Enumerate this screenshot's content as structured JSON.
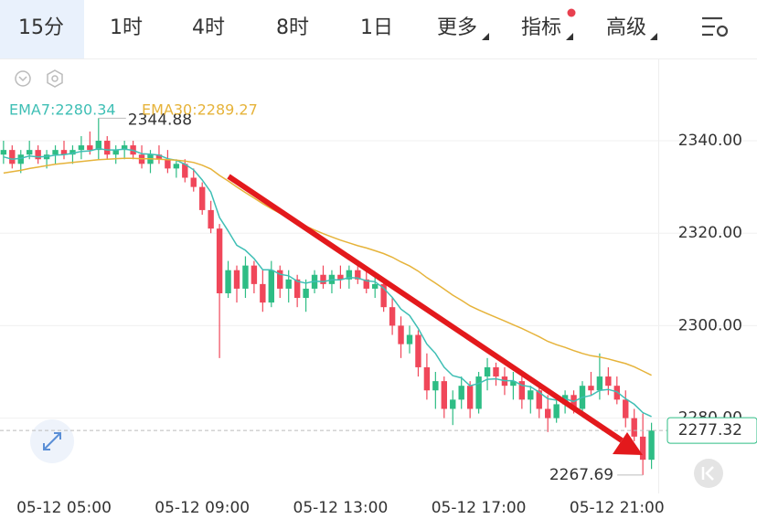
{
  "toolbar": {
    "tabs": [
      "15分",
      "1时",
      "4时",
      "8时",
      "1日",
      "更多",
      "指标",
      "高级"
    ]
  },
  "chart_data": {
    "type": "candlestick",
    "categories": [
      null,
      null,
      null,
      null,
      null,
      null,
      null,
      "05-12 05:00",
      null,
      null,
      null,
      null,
      null,
      null,
      null,
      null,
      null,
      null,
      null,
      null,
      null,
      null,
      null,
      "05-12 09:00",
      null,
      null,
      null,
      null,
      null,
      null,
      null,
      null,
      null,
      null,
      null,
      null,
      null,
      null,
      null,
      "05-12 13:00",
      null,
      null,
      null,
      null,
      null,
      null,
      null,
      null,
      null,
      null,
      null,
      null,
      null,
      null,
      null,
      "05-12 17:00",
      null,
      null,
      null,
      null,
      null,
      null,
      null,
      null,
      null,
      null,
      null,
      null,
      null,
      null,
      null,
      "05-12 21:00",
      null,
      null,
      null,
      null
    ],
    "open": [
      2337,
      2338,
      2335,
      2337,
      2338,
      2336,
      2337,
      2338,
      2337,
      2338,
      2339,
      2338,
      2340,
      2337,
      2338,
      2339,
      2337,
      2335,
      2337,
      2336,
      2334,
      2335,
      2332,
      2330,
      2325,
      2321,
      2307,
      2312,
      2308,
      2313,
      2309,
      2305,
      2312,
      2308,
      2310,
      2306,
      2308,
      2311,
      2309,
      2311,
      2310,
      2312,
      2310,
      2308,
      2309,
      2304,
      2300,
      2296,
      2298,
      2291,
      2286,
      2288,
      2282,
      2284,
      2287,
      2282,
      2289,
      2291,
      2289,
      2287,
      2288,
      2284,
      2286,
      2282,
      2280,
      2283,
      2285,
      2282,
      2287,
      2286,
      2289,
      2287,
      2284,
      2280,
      2276,
      2271
    ],
    "high": [
      2340,
      2339,
      2338,
      2340,
      2339,
      2338,
      2339,
      2340,
      2339,
      2341,
      2342,
      2344.88,
      2341,
      2339,
      2340,
      2340,
      2339,
      2338,
      2339,
      2338,
      2336,
      2336,
      2334,
      2331,
      2327,
      2322,
      2314,
      2313,
      2315,
      2314,
      2312,
      2314,
      2313,
      2312,
      2311,
      2310,
      2312,
      2313,
      2312,
      2313,
      2313,
      2314,
      2312,
      2311,
      2310,
      2306,
      2302,
      2300,
      2299,
      2294,
      2290,
      2289,
      2286,
      2289,
      2288,
      2290,
      2293,
      2292,
      2291,
      2290,
      2289,
      2287,
      2287,
      2285,
      2284,
      2286,
      2286,
      2288,
      2290,
      2294,
      2291,
      2289,
      2286,
      2282,
      2281,
      2279
    ],
    "low": [
      2335,
      2334,
      2333,
      2336,
      2335,
      2334,
      2335,
      2336,
      2335,
      2336,
      2337,
      2336,
      2336,
      2335,
      2336,
      2336,
      2334,
      2333,
      2335,
      2333,
      2332,
      2331,
      2329,
      2324,
      2320,
      2293,
      2306,
      2305,
      2306,
      2307,
      2303,
      2304,
      2306,
      2305,
      2304,
      2303,
      2307,
      2308,
      2307,
      2308,
      2308,
      2309,
      2307,
      2306,
      2303,
      2298,
      2293,
      2294,
      2289,
      2284,
      2282,
      2280,
      2278.5,
      2282,
      2280,
      2281,
      2286,
      2287,
      2285,
      2284,
      2282,
      2281,
      2280,
      2277,
      2279,
      2281,
      2281,
      2281,
      2285,
      2284,
      2285,
      2283,
      2278,
      2275,
      2267.69,
      2269
    ],
    "close": [
      2338,
      2335,
      2337,
      2338,
      2336,
      2337,
      2338,
      2337,
      2338,
      2339,
      2338,
      2340,
      2337,
      2338,
      2339,
      2337,
      2335,
      2337,
      2336,
      2334,
      2335,
      2332,
      2330,
      2325,
      2321,
      2307,
      2312,
      2308,
      2313,
      2309,
      2305,
      2312,
      2308,
      2310,
      2306,
      2308,
      2311,
      2309,
      2311,
      2310,
      2312,
      2310,
      2308,
      2309,
      2304,
      2300,
      2296,
      2298,
      2291,
      2286,
      2288,
      2282,
      2284,
      2287,
      2282,
      2289,
      2291,
      2289,
      2287,
      2288,
      2284,
      2286,
      2282,
      2280,
      2283,
      2285,
      2282,
      2287,
      2286,
      2289,
      2287,
      2284,
      2280,
      2276,
      2271,
      2277.32
    ],
    "up_color": "#2ebd85",
    "down_color": "#f0475a",
    "series": [
      {
        "name": "EMA7:2280.34",
        "color": "#3fbfb5",
        "values": [
          2336.5,
          2336,
          2336.2,
          2336.7,
          2336.5,
          2336.6,
          2336.9,
          2337,
          2337.3,
          2337.7,
          2337.8,
          2338.3,
          2338,
          2338,
          2338.2,
          2337.9,
          2337.2,
          2337.1,
          2336.9,
          2336.1,
          2335.8,
          2334.9,
          2333.7,
          2331.5,
          2328.9,
          2323.4,
          2320.5,
          2317.4,
          2316.3,
          2314.5,
          2312.1,
          2312.1,
          2311.1,
          2310.8,
          2309.6,
          2309.2,
          2309.6,
          2309.5,
          2309.9,
          2309.9,
          2310.4,
          2310.3,
          2309.7,
          2309.5,
          2308.1,
          2306.1,
          2303.6,
          2302.2,
          2299.4,
          2296,
          2294,
          2291,
          2289.2,
          2288.7,
          2287,
          2287.5,
          2288.4,
          2288.5,
          2288.1,
          2288.1,
          2287.1,
          2286.8,
          2285.6,
          2284.2,
          2283.9,
          2284.2,
          2283.6,
          2284.5,
          2284.9,
          2286,
          2286.2,
          2285.7,
          2284.2,
          2283,
          2281.2,
          2280.34
        ]
      },
      {
        "name": "EMA30:2289.27",
        "color": "#e6b33a",
        "values": [
          2333,
          2333.3,
          2333.6,
          2334,
          2334.3,
          2334.6,
          2334.9,
          2335.1,
          2335.3,
          2335.5,
          2335.7,
          2335.9,
          2336,
          2336.1,
          2336.2,
          2336.2,
          2336.1,
          2336.1,
          2336,
          2335.9,
          2335.8,
          2335.6,
          2335.3,
          2334.7,
          2333.9,
          2332.5,
          2331.3,
          2330,
          2328.8,
          2327.6,
          2326.4,
          2325.3,
          2324.3,
          2323.3,
          2322.4,
          2321.5,
          2320.7,
          2319.9,
          2319.2,
          2318.5,
          2317.9,
          2317.3,
          2316.8,
          2316.2,
          2315.6,
          2314.8,
          2313.8,
          2312.9,
          2311.8,
          2310.4,
          2309.2,
          2307.9,
          2306.6,
          2305.5,
          2304.3,
          2303.4,
          2302.6,
          2301.8,
          2301,
          2300.2,
          2299.4,
          2298.5,
          2297.6,
          2296.6,
          2295.9,
          2295.3,
          2294.6,
          2294,
          2293.5,
          2293.2,
          2292.8,
          2292.3,
          2291.8,
          2291.1,
          2290.2,
          2289.27
        ]
      }
    ],
    "ylim": [
      2265,
      2357
    ],
    "yticks": [
      {
        "value": 2280,
        "label": "2280.00"
      },
      {
        "value": 2300,
        "label": "2300.00"
      },
      {
        "value": 2320,
        "label": "2320.00"
      },
      {
        "value": 2340,
        "label": "2340.00"
      }
    ],
    "grid": true,
    "high_marker": 2344.88,
    "low_marker": 2267.69,
    "last_price": 2277.32
  }
}
